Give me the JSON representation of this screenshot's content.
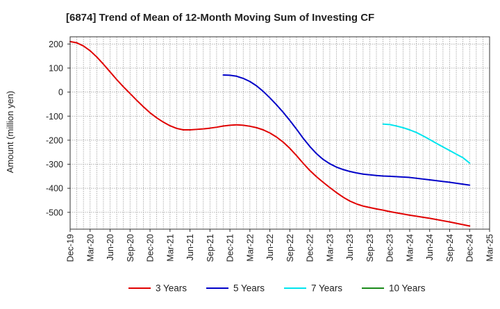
{
  "chart_data": {
    "type": "line",
    "title": "[6874]  Trend of Mean of 12-Month Moving Sum of Investing CF",
    "xlabel": "",
    "ylabel": "Amount (million yen)",
    "ylim": [
      -570,
      230
    ],
    "yticks": [
      200,
      100,
      0,
      -100,
      -200,
      -300,
      -400,
      -500
    ],
    "ytick_labels": [
      "200",
      "100",
      "0",
      "-100",
      "-200",
      "-300",
      "-400",
      "-500"
    ],
    "x_index_range": [
      0,
      63
    ],
    "xtick_index": [
      0,
      3,
      6,
      9,
      12,
      15,
      18,
      21,
      24,
      27,
      30,
      33,
      36,
      39,
      42,
      45,
      48,
      51,
      54,
      57,
      60,
      63
    ],
    "xtick_labels": [
      "Dec-19",
      "Mar-20",
      "Jun-20",
      "Sep-20",
      "Dec-20",
      "Mar-21",
      "Jun-21",
      "Sep-21",
      "Dec-21",
      "Mar-22",
      "Jun-22",
      "Sep-22",
      "Dec-22",
      "Mar-23",
      "Jun-23",
      "Sep-23",
      "Dec-23",
      "Mar-24",
      "Jun-24",
      "Sep-24",
      "Dec-24",
      "Mar-25"
    ],
    "grid": true,
    "legend_position": "bottom",
    "series": [
      {
        "name": "3 Years",
        "color": "#e00000",
        "x": [
          0,
          1,
          2,
          3,
          4,
          5,
          6,
          7,
          8,
          9,
          10,
          11,
          12,
          13,
          14,
          15,
          16,
          17,
          18,
          19,
          20,
          21,
          22,
          23,
          24,
          25,
          26,
          27,
          28,
          29,
          30,
          31,
          32,
          33,
          34,
          35,
          36,
          37,
          38,
          39,
          40,
          41,
          42,
          43,
          44,
          45,
          46,
          47,
          48,
          51,
          54,
          57,
          60
        ],
        "values": [
          210,
          205,
          192,
          172,
          146,
          116,
          84,
          52,
          22,
          -6,
          -34,
          -61,
          -86,
          -107,
          -125,
          -140,
          -151,
          -157,
          -157,
          -155,
          -153,
          -150,
          -146,
          -141,
          -138,
          -136,
          -138,
          -142,
          -148,
          -157,
          -170,
          -187,
          -208,
          -234,
          -264,
          -296,
          -326,
          -352,
          -375,
          -397,
          -418,
          -437,
          -453,
          -465,
          -474,
          -480,
          -486,
          -491,
          -497,
          -512,
          -525,
          -540,
          -557
        ]
      },
      {
        "name": "5 Years",
        "color": "#0000c8",
        "x": [
          23,
          24,
          25,
          26,
          27,
          28,
          29,
          30,
          31,
          32,
          33,
          34,
          35,
          36,
          37,
          38,
          39,
          40,
          41,
          42,
          43,
          44,
          45,
          46,
          47,
          48,
          51,
          54,
          57,
          60
        ],
        "values": [
          71,
          70,
          66,
          57,
          44,
          26,
          3,
          -24,
          -53,
          -84,
          -118,
          -154,
          -192,
          -226,
          -256,
          -280,
          -298,
          -312,
          -322,
          -330,
          -336,
          -341,
          -344,
          -347,
          -349,
          -350,
          -355,
          -365,
          -375,
          -387
        ]
      },
      {
        "name": "7 Years",
        "color": "#00e5ee",
        "x": [
          47,
          48,
          49,
          50,
          51,
          52,
          53,
          54,
          55,
          56,
          57,
          58,
          59,
          60
        ],
        "values": [
          -133,
          -135,
          -141,
          -148,
          -157,
          -168,
          -182,
          -197,
          -213,
          -228,
          -243,
          -258,
          -273,
          -295
        ]
      },
      {
        "name": "10 Years",
        "color": "#1a8a1a",
        "x": [],
        "values": []
      }
    ]
  }
}
